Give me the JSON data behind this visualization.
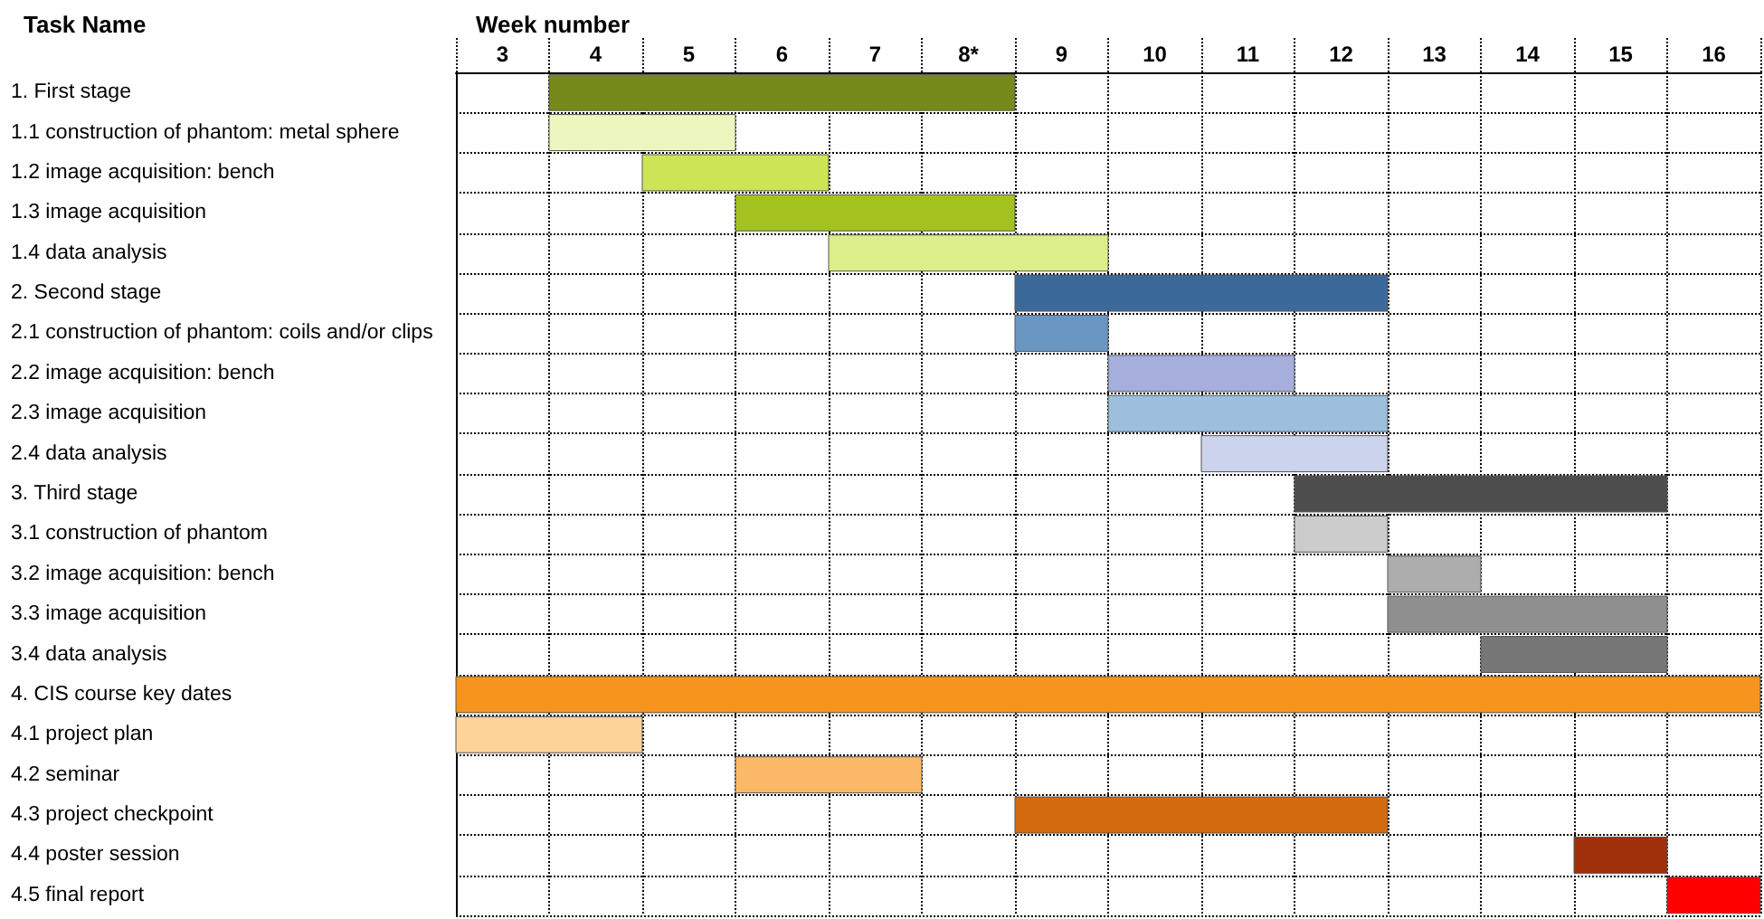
{
  "chart_data": {
    "type": "bar",
    "orientation": "horizontal",
    "xlabel": "Week number",
    "ylabel": "Task Name",
    "categories": [
      "1. First stage",
      "1.1 construction of phantom: metal sphere",
      "1.2 image acquisition: bench",
      "1.3 image acquisition",
      "1.4 data analysis",
      "2. Second stage",
      "2.1 construction of phantom: coils and/or clips",
      "2.2 image acquisition: bench",
      "2.3 image acquisition",
      "2.4 data analysis",
      "3. Third stage",
      "3.1 construction of phantom",
      "3.2 image acquisition: bench",
      "3.3 image acquisition",
      "3.4 data analysis",
      "4. CIS course key dates",
      "4.1 project plan",
      "4.2 seminar",
      "4.3 project checkpoint",
      "4.4 poster session",
      "4.5 final report"
    ],
    "base": [
      4,
      4,
      5,
      6,
      7,
      9,
      9,
      10,
      10,
      11,
      12,
      12,
      13,
      13,
      14,
      3,
      3,
      6,
      9,
      15,
      16
    ],
    "values": [
      5,
      2,
      2,
      3,
      3,
      4,
      1,
      2,
      3,
      2,
      4,
      1,
      1,
      3,
      2,
      14,
      2,
      2,
      4,
      1,
      1
    ],
    "colors": [
      "#76891b",
      "#eef6c0",
      "#cde456",
      "#a4c21f",
      "#dcee8a",
      "#3b6a9a",
      "#6a96c4",
      "#a6aedc",
      "#9bbfdd",
      "#ccd3ec",
      "#4d4d4d",
      "#cccccc",
      "#adadad",
      "#8f8f8f",
      "#777777",
      "#f7941d",
      "#fdd39a",
      "#fbb868",
      "#d46a10",
      "#a0300a",
      "#ff0000"
    ],
    "xlim": [
      3,
      17
    ],
    "xticks": [
      {
        "value": 3.5,
        "label": "3"
      },
      {
        "value": 4.5,
        "label": "4"
      },
      {
        "value": 5.5,
        "label": "5"
      },
      {
        "value": 6.5,
        "label": "6"
      },
      {
        "value": 7.5,
        "label": "7"
      },
      {
        "value": 8.5,
        "label": "8*"
      },
      {
        "value": 9.5,
        "label": "9"
      },
      {
        "value": 10.5,
        "label": "10"
      },
      {
        "value": 11.5,
        "label": "11"
      },
      {
        "value": 12.5,
        "label": "12"
      },
      {
        "value": 13.5,
        "label": "13"
      },
      {
        "value": 14.5,
        "label": "14"
      },
      {
        "value": 15.5,
        "label": "15"
      },
      {
        "value": 16.5,
        "label": "16"
      },
      {
        "value": 3,
        "label": null
      },
      {
        "value": 4,
        "label": null
      },
      {
        "value": 5,
        "label": null
      },
      {
        "value": 6,
        "label": null
      },
      {
        "value": 7,
        "label": null
      },
      {
        "value": 8,
        "label": null
      },
      {
        "value": 9,
        "label": null
      },
      {
        "value": 10,
        "label": null
      },
      {
        "value": 11,
        "label": null
      },
      {
        "value": 12,
        "label": null
      },
      {
        "value": 13,
        "label": null
      },
      {
        "value": 14,
        "label": null
      },
      {
        "value": 15,
        "label": null
      },
      {
        "value": 16,
        "label": null
      },
      {
        "value": 17,
        "label": null
      }
    ],
    "grid": true
  }
}
